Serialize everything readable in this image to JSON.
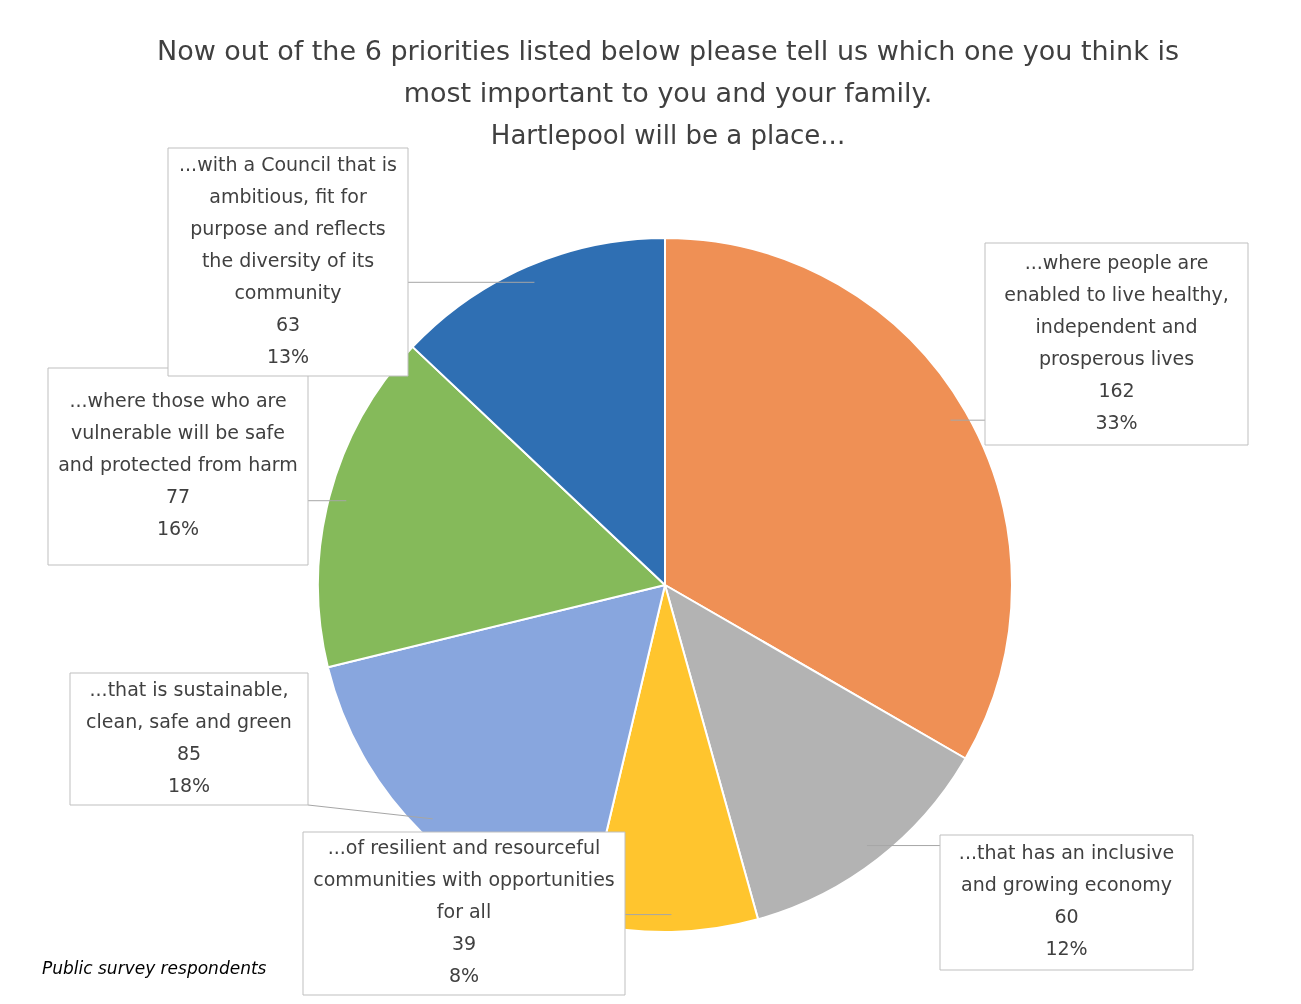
{
  "chart_data": {
    "type": "pie",
    "title": "Now out of the 6 priorities listed below please tell us which one you think is most important to you and your family.",
    "subtitle": "Hartlepool will be a place...",
    "categories": [
      "...where people are enabled to live healthy, independent and prosperous lives",
      "...that has an inclusive and growing economy",
      "...of resilient and resourceful communities with opportunities for all",
      "...that is sustainable, clean, safe and green",
      "...where those who are vulnerable will be safe and protected from harm",
      "...with a Council that is ambitious, fit for purpose and reflects the diversity of its community"
    ],
    "values": [
      162,
      60,
      39,
      85,
      77,
      63
    ],
    "colors": [
      "#ef9055",
      "#b3b3b3",
      "#ffc52e",
      "#88a6de",
      "#85ba5a",
      "#2f6fb3"
    ],
    "value_labels": [
      "162\n33%",
      "60\n12%",
      "39\n8%",
      "85\n18%",
      "77\n16%",
      "63\n13%"
    ],
    "legend": false,
    "annotations": [
      "Public survey respondents"
    ]
  }
}
